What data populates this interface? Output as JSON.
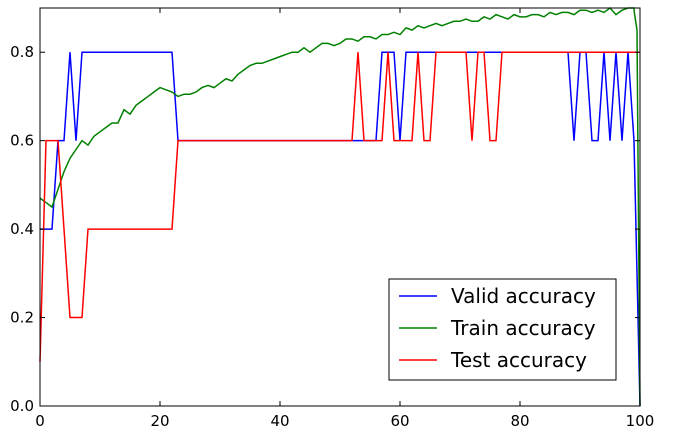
{
  "chart_data": {
    "type": "line",
    "title": "",
    "xlabel": "",
    "ylabel": "",
    "xlim": [
      0,
      100
    ],
    "ylim": [
      0.0,
      0.9
    ],
    "x_ticks": [
      0,
      20,
      40,
      60,
      80,
      100
    ],
    "x_tick_labels": [
      "0",
      "20",
      "40",
      "60",
      "80",
      "100"
    ],
    "y_ticks": [
      0.0,
      0.2,
      0.4,
      0.6,
      0.8
    ],
    "y_tick_labels": [
      "0.0",
      "0.2",
      "0.4",
      "0.6",
      "0.8"
    ],
    "grid": false,
    "legend": {
      "position": "lower right"
    },
    "series": [
      {
        "name": "Valid accuracy",
        "color": "#0000ff",
        "x": [
          0,
          1,
          2,
          3,
          4,
          5,
          6,
          7,
          8,
          9,
          10,
          15,
          20,
          22,
          23,
          24,
          30,
          40,
          50,
          52,
          53,
          54,
          55,
          56,
          57,
          58,
          59,
          60,
          61,
          62,
          63,
          64,
          65,
          66,
          67,
          70,
          75,
          80,
          85,
          88,
          89,
          90,
          91,
          92,
          93,
          94,
          95,
          96,
          97,
          98,
          99,
          100
        ],
        "y": [
          0.4,
          0.4,
          0.4,
          0.6,
          0.6,
          0.8,
          0.6,
          0.8,
          0.8,
          0.8,
          0.8,
          0.8,
          0.8,
          0.8,
          0.6,
          0.6,
          0.6,
          0.6,
          0.6,
          0.6,
          0.6,
          0.6,
          0.6,
          0.6,
          0.8,
          0.8,
          0.8,
          0.6,
          0.8,
          0.8,
          0.8,
          0.8,
          0.8,
          0.8,
          0.8,
          0.8,
          0.8,
          0.8,
          0.8,
          0.8,
          0.6,
          0.8,
          0.8,
          0.6,
          0.6,
          0.8,
          0.6,
          0.8,
          0.6,
          0.8,
          0.6,
          0.0
        ]
      },
      {
        "name": "Train accuracy",
        "color": "#008000",
        "x": [
          0,
          1,
          2,
          3,
          4,
          5,
          6,
          7,
          8,
          9,
          10,
          11,
          12,
          13,
          14,
          15,
          16,
          17,
          18,
          19,
          20,
          21,
          22,
          23,
          24,
          25,
          26,
          27,
          28,
          29,
          30,
          31,
          32,
          33,
          34,
          35,
          36,
          37,
          38,
          39,
          40,
          41,
          42,
          43,
          44,
          45,
          46,
          47,
          48,
          49,
          50,
          51,
          52,
          53,
          54,
          55,
          56,
          57,
          58,
          59,
          60,
          61,
          62,
          63,
          64,
          65,
          66,
          67,
          68,
          69,
          70,
          71,
          72,
          73,
          74,
          75,
          76,
          77,
          78,
          79,
          80,
          81,
          82,
          83,
          84,
          85,
          86,
          87,
          88,
          89,
          90,
          91,
          92,
          93,
          94,
          95,
          96,
          97,
          98,
          99,
          100
        ],
        "y": [
          0.47,
          0.46,
          0.45,
          0.49,
          0.53,
          0.56,
          0.58,
          0.6,
          0.59,
          0.61,
          0.62,
          0.63,
          0.64,
          0.64,
          0.67,
          0.66,
          0.68,
          0.69,
          0.7,
          0.71,
          0.72,
          0.715,
          0.71,
          0.7,
          0.705,
          0.705,
          0.71,
          0.72,
          0.725,
          0.72,
          0.73,
          0.74,
          0.735,
          0.75,
          0.76,
          0.77,
          0.775,
          0.775,
          0.78,
          0.785,
          0.79,
          0.795,
          0.8,
          0.8,
          0.81,
          0.8,
          0.81,
          0.82,
          0.82,
          0.815,
          0.82,
          0.83,
          0.83,
          0.825,
          0.835,
          0.835,
          0.83,
          0.84,
          0.84,
          0.845,
          0.84,
          0.855,
          0.85,
          0.86,
          0.855,
          0.86,
          0.865,
          0.86,
          0.865,
          0.87,
          0.87,
          0.875,
          0.87,
          0.87,
          0.88,
          0.875,
          0.885,
          0.88,
          0.875,
          0.885,
          0.88,
          0.88,
          0.885,
          0.885,
          0.88,
          0.89,
          0.885,
          0.89,
          0.89,
          0.885,
          0.895,
          0.895,
          0.89,
          0.895,
          0.89,
          0.9,
          0.885,
          0.895,
          0.9,
          0.9,
          0.895
        ],
        "tail_x": [
          99,
          99.5,
          100
        ],
        "tail_y": [
          0.895,
          0.85,
          0.0
        ]
      },
      {
        "name": "Test accuracy",
        "color": "#ff0000",
        "x": [
          0,
          1,
          2,
          3,
          4,
          5,
          6,
          7,
          8,
          9,
          10,
          15,
          20,
          22,
          23,
          30,
          40,
          50,
          52,
          53,
          54,
          55,
          56,
          57,
          58,
          59,
          60,
          61,
          62,
          63,
          64,
          65,
          66,
          67,
          68,
          69,
          70,
          71,
          72,
          73,
          74,
          75,
          76,
          77,
          80,
          90,
          95,
          100
        ],
        "y": [
          0.1,
          0.6,
          0.6,
          0.6,
          0.4,
          0.2,
          0.2,
          0.2,
          0.4,
          0.4,
          0.4,
          0.4,
          0.4,
          0.4,
          0.6,
          0.6,
          0.6,
          0.6,
          0.6,
          0.8,
          0.6,
          0.6,
          0.6,
          0.6,
          0.8,
          0.6,
          0.6,
          0.6,
          0.6,
          0.8,
          0.6,
          0.6,
          0.8,
          0.8,
          0.8,
          0.8,
          0.8,
          0.8,
          0.6,
          0.8,
          0.8,
          0.6,
          0.6,
          0.8,
          0.8,
          0.8,
          0.8,
          0.8
        ]
      }
    ]
  }
}
